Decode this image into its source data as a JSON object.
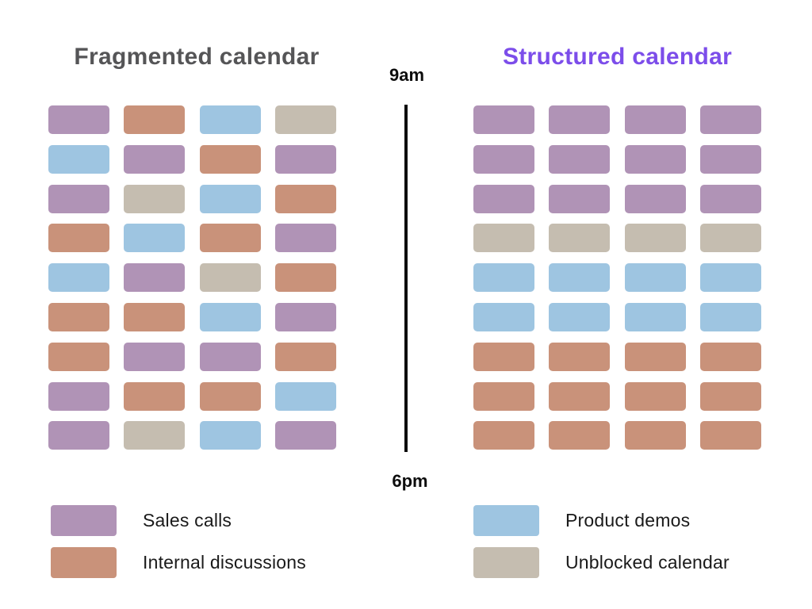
{
  "colors": {
    "purple": "#b093b6",
    "orange": "#c9927a",
    "blue": "#9ec5e1",
    "gray": "#c5bdb0",
    "left_title": "#555557",
    "right_title": "#7c4dea",
    "timeline": "#0d0d0d"
  },
  "left_panel": {
    "title": "Fragmented calendar",
    "grid_rows": [
      [
        "purple",
        "orange",
        "blue",
        "gray"
      ],
      [
        "blue",
        "purple",
        "orange",
        "purple"
      ],
      [
        "purple",
        "gray",
        "blue",
        "orange"
      ],
      [
        "orange",
        "blue",
        "orange",
        "purple"
      ],
      [
        "blue",
        "purple",
        "gray",
        "orange"
      ],
      [
        "orange",
        "orange",
        "blue",
        "purple"
      ],
      [
        "orange",
        "purple",
        "purple",
        "orange"
      ],
      [
        "purple",
        "orange",
        "orange",
        "blue"
      ],
      [
        "purple",
        "gray",
        "blue",
        "purple"
      ]
    ]
  },
  "right_panel": {
    "title": "Structured calendar",
    "grid_rows": [
      [
        "purple",
        "purple",
        "purple",
        "purple"
      ],
      [
        "purple",
        "purple",
        "purple",
        "purple"
      ],
      [
        "purple",
        "purple",
        "purple",
        "purple"
      ],
      [
        "gray",
        "gray",
        "gray",
        "gray"
      ],
      [
        "blue",
        "blue",
        "blue",
        "blue"
      ],
      [
        "blue",
        "blue",
        "blue",
        "blue"
      ],
      [
        "orange",
        "orange",
        "orange",
        "orange"
      ],
      [
        "orange",
        "orange",
        "orange",
        "orange"
      ],
      [
        "orange",
        "orange",
        "orange",
        "orange"
      ]
    ]
  },
  "timeline": {
    "start_label": "9am",
    "end_label": "6pm"
  },
  "legend": {
    "left_items": [
      {
        "color_key": "purple",
        "label": "Sales calls"
      },
      {
        "color_key": "orange",
        "label": "Internal discussions"
      }
    ],
    "right_items": [
      {
        "color_key": "blue",
        "label": "Product demos"
      },
      {
        "color_key": "gray",
        "label": "Unblocked calendar"
      }
    ]
  }
}
